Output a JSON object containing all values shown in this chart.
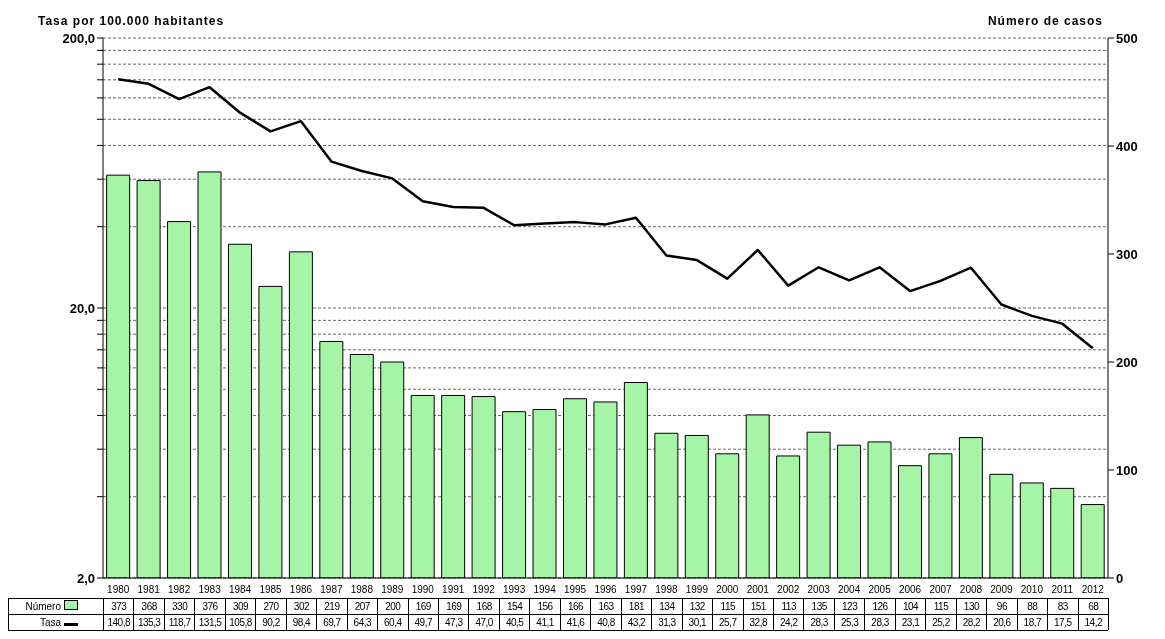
{
  "chart_data": {
    "type": "bar",
    "ylabel": "Tasa por 100.000 habitantes",
    "y2label": "Número de casos",
    "categories": [
      "1980",
      "1981",
      "1982",
      "1983",
      "1984",
      "1985",
      "1986",
      "1987",
      "1988",
      "1989",
      "1990",
      "1991",
      "1992",
      "1993",
      "1994",
      "1995",
      "1996",
      "1997",
      "1998",
      "1999",
      "2000",
      "2001",
      "2002",
      "2003",
      "2004",
      "2005",
      "2006",
      "2007",
      "2008",
      "2009",
      "2010",
      "2011",
      "2012"
    ],
    "series": [
      {
        "name": "Número",
        "axis": "y2",
        "color": "#a6f5a6",
        "values": [
          373,
          368,
          330,
          376,
          309,
          270,
          302,
          219,
          207,
          200,
          169,
          169,
          168,
          154,
          156,
          166,
          163,
          181,
          134,
          132,
          115,
          151,
          113,
          135,
          123,
          126,
          104,
          115,
          130,
          96,
          88,
          83,
          68
        ],
        "value_labels": [
          "373",
          "368",
          "330",
          "376",
          "309",
          "270",
          "302",
          "219",
          "207",
          "200",
          "169",
          "169",
          "168",
          "154",
          "156",
          "166",
          "163",
          "181",
          "134",
          "132",
          "115",
          "151",
          "113",
          "135",
          "123",
          "126",
          "104",
          "115",
          "130",
          "96",
          "88",
          "83",
          "68"
        ]
      },
      {
        "name": "Tasa",
        "type": "line",
        "color": "#000000",
        "values": [
          140.8,
          135.3,
          118.7,
          131.5,
          105.8,
          90.2,
          98.4,
          69.7,
          64.3,
          60.4,
          49.7,
          47.3,
          47.0,
          40.5,
          41.1,
          41.6,
          40.8,
          43.2,
          31.3,
          30.1,
          25.7,
          32.8,
          24.2,
          28.3,
          25.3,
          28.3,
          23.1,
          25.2,
          28.2,
          20.6,
          18.7,
          17.5,
          14.2
        ],
        "value_labels": [
          "140,8",
          "135,3",
          "118,7",
          "131,5",
          "105,8",
          "90,2",
          "98,4",
          "69,7",
          "64,3",
          "60,4",
          "49,7",
          "47,3",
          "47,0",
          "40,5",
          "41,1",
          "41,6",
          "40,8",
          "43,2",
          "31,3",
          "30,1",
          "25,7",
          "32,8",
          "24,2",
          "28,3",
          "25,3",
          "28,3",
          "23,1",
          "25,2",
          "28,2",
          "20,6",
          "18,7",
          "17,5",
          "14,2"
        ]
      }
    ],
    "log": "y",
    "ylim": [
      2,
      200
    ],
    "yticks": [
      {
        "value": 2,
        "label": "2,0"
      },
      {
        "value": 4,
        "label": null
      },
      {
        "value": 6,
        "label": null
      },
      {
        "value": 8,
        "label": null
      },
      {
        "value": 10,
        "label": null
      },
      {
        "value": 12,
        "label": null
      },
      {
        "value": 14,
        "label": null
      },
      {
        "value": 16,
        "label": null
      },
      {
        "value": 18,
        "label": null
      },
      {
        "value": 20,
        "label": "20,0"
      },
      {
        "value": 40,
        "label": null
      },
      {
        "value": 60,
        "label": null
      },
      {
        "value": 80,
        "label": null
      },
      {
        "value": 100,
        "label": null
      },
      {
        "value": 120,
        "label": null
      },
      {
        "value": 140,
        "label": null
      },
      {
        "value": 160,
        "label": null
      },
      {
        "value": 180,
        "label": null
      },
      {
        "value": 200,
        "label": "200,0"
      }
    ],
    "y2lim": [
      0,
      500
    ],
    "y2ticks": [
      0,
      100,
      200,
      300,
      400,
      500
    ],
    "grid": "y",
    "legend": "bottom",
    "marker": "none",
    "line_style": "solid"
  }
}
